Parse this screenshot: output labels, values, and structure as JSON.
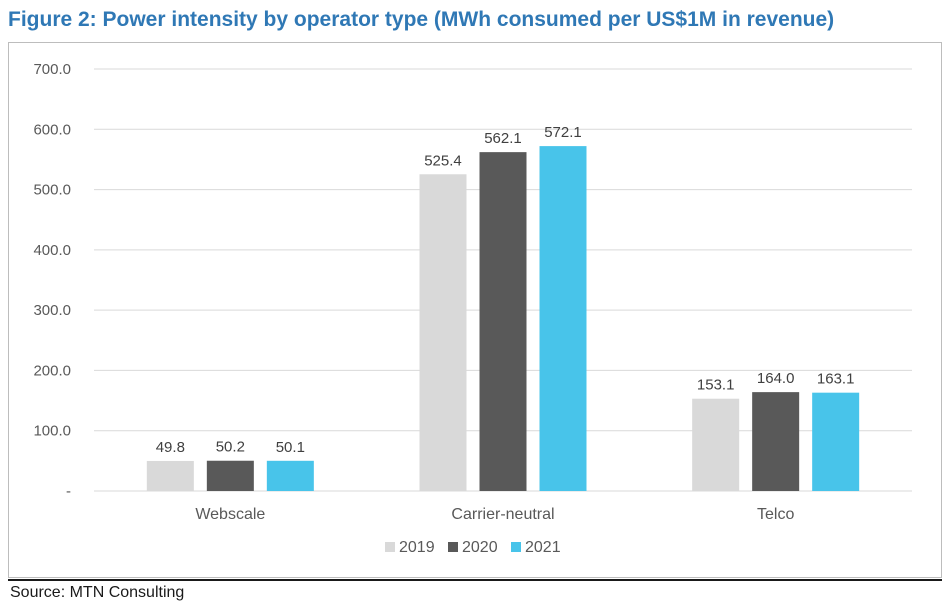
{
  "figure": {
    "title": "Figure 2: Power intensity by operator type (MWh consumed per US$1M in revenue)",
    "source": "Source: MTN Consulting"
  },
  "chart_data": {
    "type": "bar",
    "title": "",
    "xlabel": "",
    "ylabel": "",
    "categories": [
      "Webscale",
      "Carrier-neutral",
      "Telco"
    ],
    "series": [
      {
        "name": "2019",
        "values": [
          49.8,
          525.4,
          153.1
        ],
        "color": "#d9d9d9"
      },
      {
        "name": "2020",
        "values": [
          50.2,
          562.1,
          164.0
        ],
        "color": "#595959"
      },
      {
        "name": "2021",
        "values": [
          50.1,
          572.1,
          163.1
        ],
        "color": "#48c4ea"
      }
    ],
    "ylim": [
      0,
      700
    ],
    "yticks": [
      0,
      100,
      200,
      300,
      400,
      500,
      600,
      700
    ],
    "ytick_labels": [
      "-",
      "100.0",
      "200.0",
      "300.0",
      "400.0",
      "500.0",
      "600.0",
      "700.0"
    ],
    "grid": true,
    "legend_position": "bottom",
    "colors": {
      "gridline": "#d9d9d9",
      "axis_text": "#595959",
      "title": "#2f78b5"
    }
  }
}
